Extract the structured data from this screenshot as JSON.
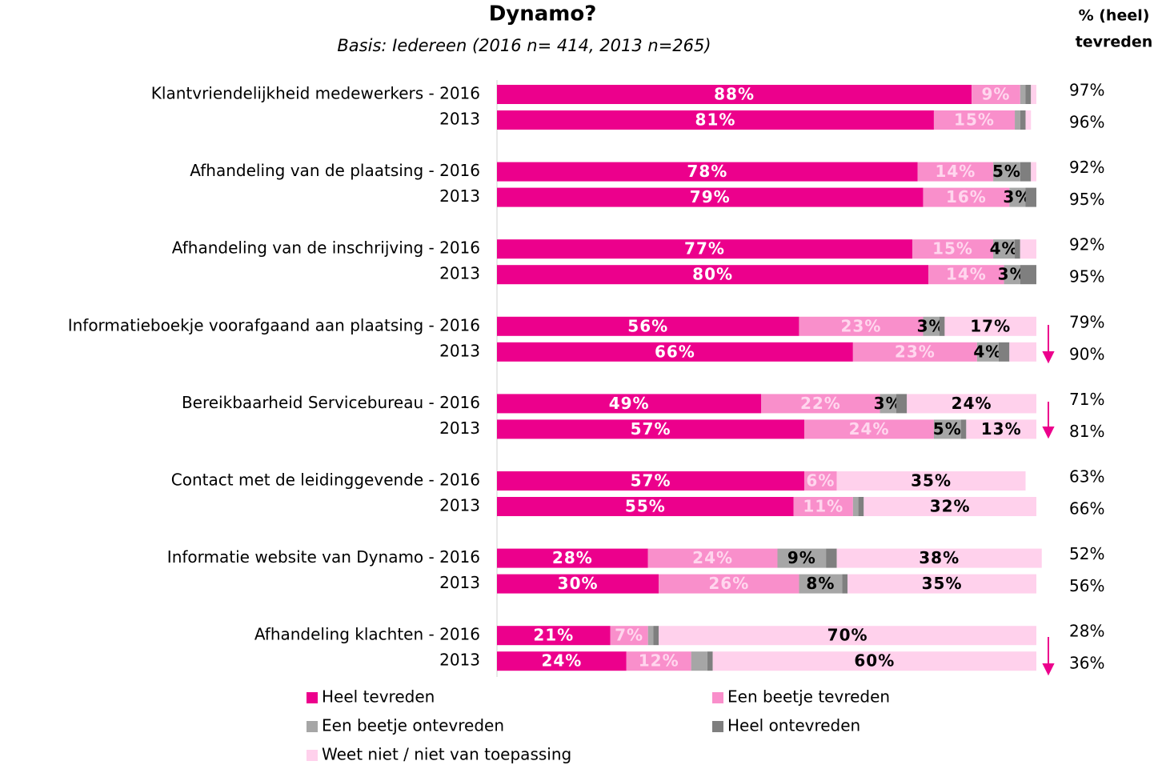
{
  "chart_data": {
    "type": "stacked-bar-horizontal",
    "title": "Dynamo?",
    "subtitle": "Basis: Iedereen (2016 n= 414, 2013 n=265)",
    "total_header": [
      "% (heel)",
      "tevreden"
    ],
    "categories": [
      "Klantvriendelijkheid medewerkers - 2016",
      "2013",
      "Afhandeling van de plaatsing  - 2016",
      "2013",
      "Afhandeling van de inschrijving  - 2016",
      "2013",
      "Informatieboekje voorafgaand aan plaatsing - 2016",
      "2013",
      "Bereikbaarheid Servicebureau - 2016",
      "2013",
      "Contact met de leidinggevende - 2016",
      "2013",
      "Informatie website van Dynamo - 2016",
      "2013",
      "Afhandeling klachten - 2016",
      "2013"
    ],
    "xlim": [
      0,
      100
    ],
    "series": [
      {
        "name": "Heel tevreden",
        "color": "#ec008c",
        "label_color": "#ffffff",
        "values": [
          88,
          81,
          78,
          79,
          77,
          80,
          56,
          66,
          49,
          57,
          57,
          55,
          28,
          30,
          21,
          24
        ],
        "value_labels": [
          "88%",
          "81%",
          "78%",
          "79%",
          "77%",
          "80%",
          "56%",
          "66%",
          "49%",
          "57%",
          "57%",
          "55%",
          "28%",
          "30%",
          "21%",
          "24%"
        ]
      },
      {
        "name": "Een beetje tevreden",
        "color": "#f98fcb",
        "label_color": "#ffd6ee",
        "values": [
          9,
          15,
          14,
          16,
          15,
          14,
          23,
          23,
          22,
          24,
          6,
          11,
          24,
          26,
          7,
          12
        ],
        "value_labels": [
          "9%",
          "15%",
          "14%",
          "16%",
          "15%",
          "14%",
          "23%",
          "23%",
          "22%",
          "24%",
          "6%",
          "11%",
          "24%",
          "26%",
          "7%",
          "12%"
        ]
      },
      {
        "name": "Een beetje ontevreden",
        "color": "#a6a6a6",
        "label_color": "#000000",
        "values": [
          1,
          1,
          5,
          3,
          4,
          3,
          3,
          4,
          3,
          5,
          0,
          1,
          9,
          8,
          1,
          3
        ],
        "value_labels": [
          null,
          null,
          "5%",
          "3%",
          "4%",
          "3%",
          "3%",
          "4%",
          "3%",
          "5%",
          null,
          null,
          "9%",
          "8%",
          null,
          null
        ]
      },
      {
        "name": "Heel ontevreden",
        "color": "#7f7f7f",
        "label_color": "#000000",
        "values": [
          1,
          1,
          2,
          2,
          1,
          3,
          1,
          2,
          2,
          1,
          0,
          1,
          2,
          1,
          1,
          1
        ],
        "value_labels": [
          null,
          null,
          null,
          null,
          null,
          null,
          null,
          null,
          null,
          null,
          null,
          null,
          null,
          null,
          null,
          null
        ]
      },
      {
        "name": "Weet niet / niet van toepassing",
        "color": "#ffd1ec",
        "label_color": "#000000",
        "values": [
          1,
          1,
          1,
          0,
          3,
          0,
          17,
          5,
          24,
          13,
          35,
          32,
          38,
          35,
          70,
          60
        ],
        "value_labels": [
          null,
          null,
          null,
          null,
          null,
          null,
          "17%",
          null,
          "24%",
          "13%",
          "35%",
          "32%",
          "38%",
          "35%",
          "70%",
          "60%"
        ]
      }
    ],
    "totals": {
      "values": [
        97,
        96,
        92,
        95,
        92,
        95,
        79,
        90,
        71,
        81,
        63,
        66,
        52,
        56,
        28,
        36
      ],
      "value_labels": [
        "97%",
        "96%",
        "92%",
        "95%",
        "92%",
        "95%",
        "79%",
        "90%",
        "71%",
        "81%",
        "63%",
        "66%",
        "52%",
        "56%",
        "28%",
        "36%"
      ]
    }
  }
}
